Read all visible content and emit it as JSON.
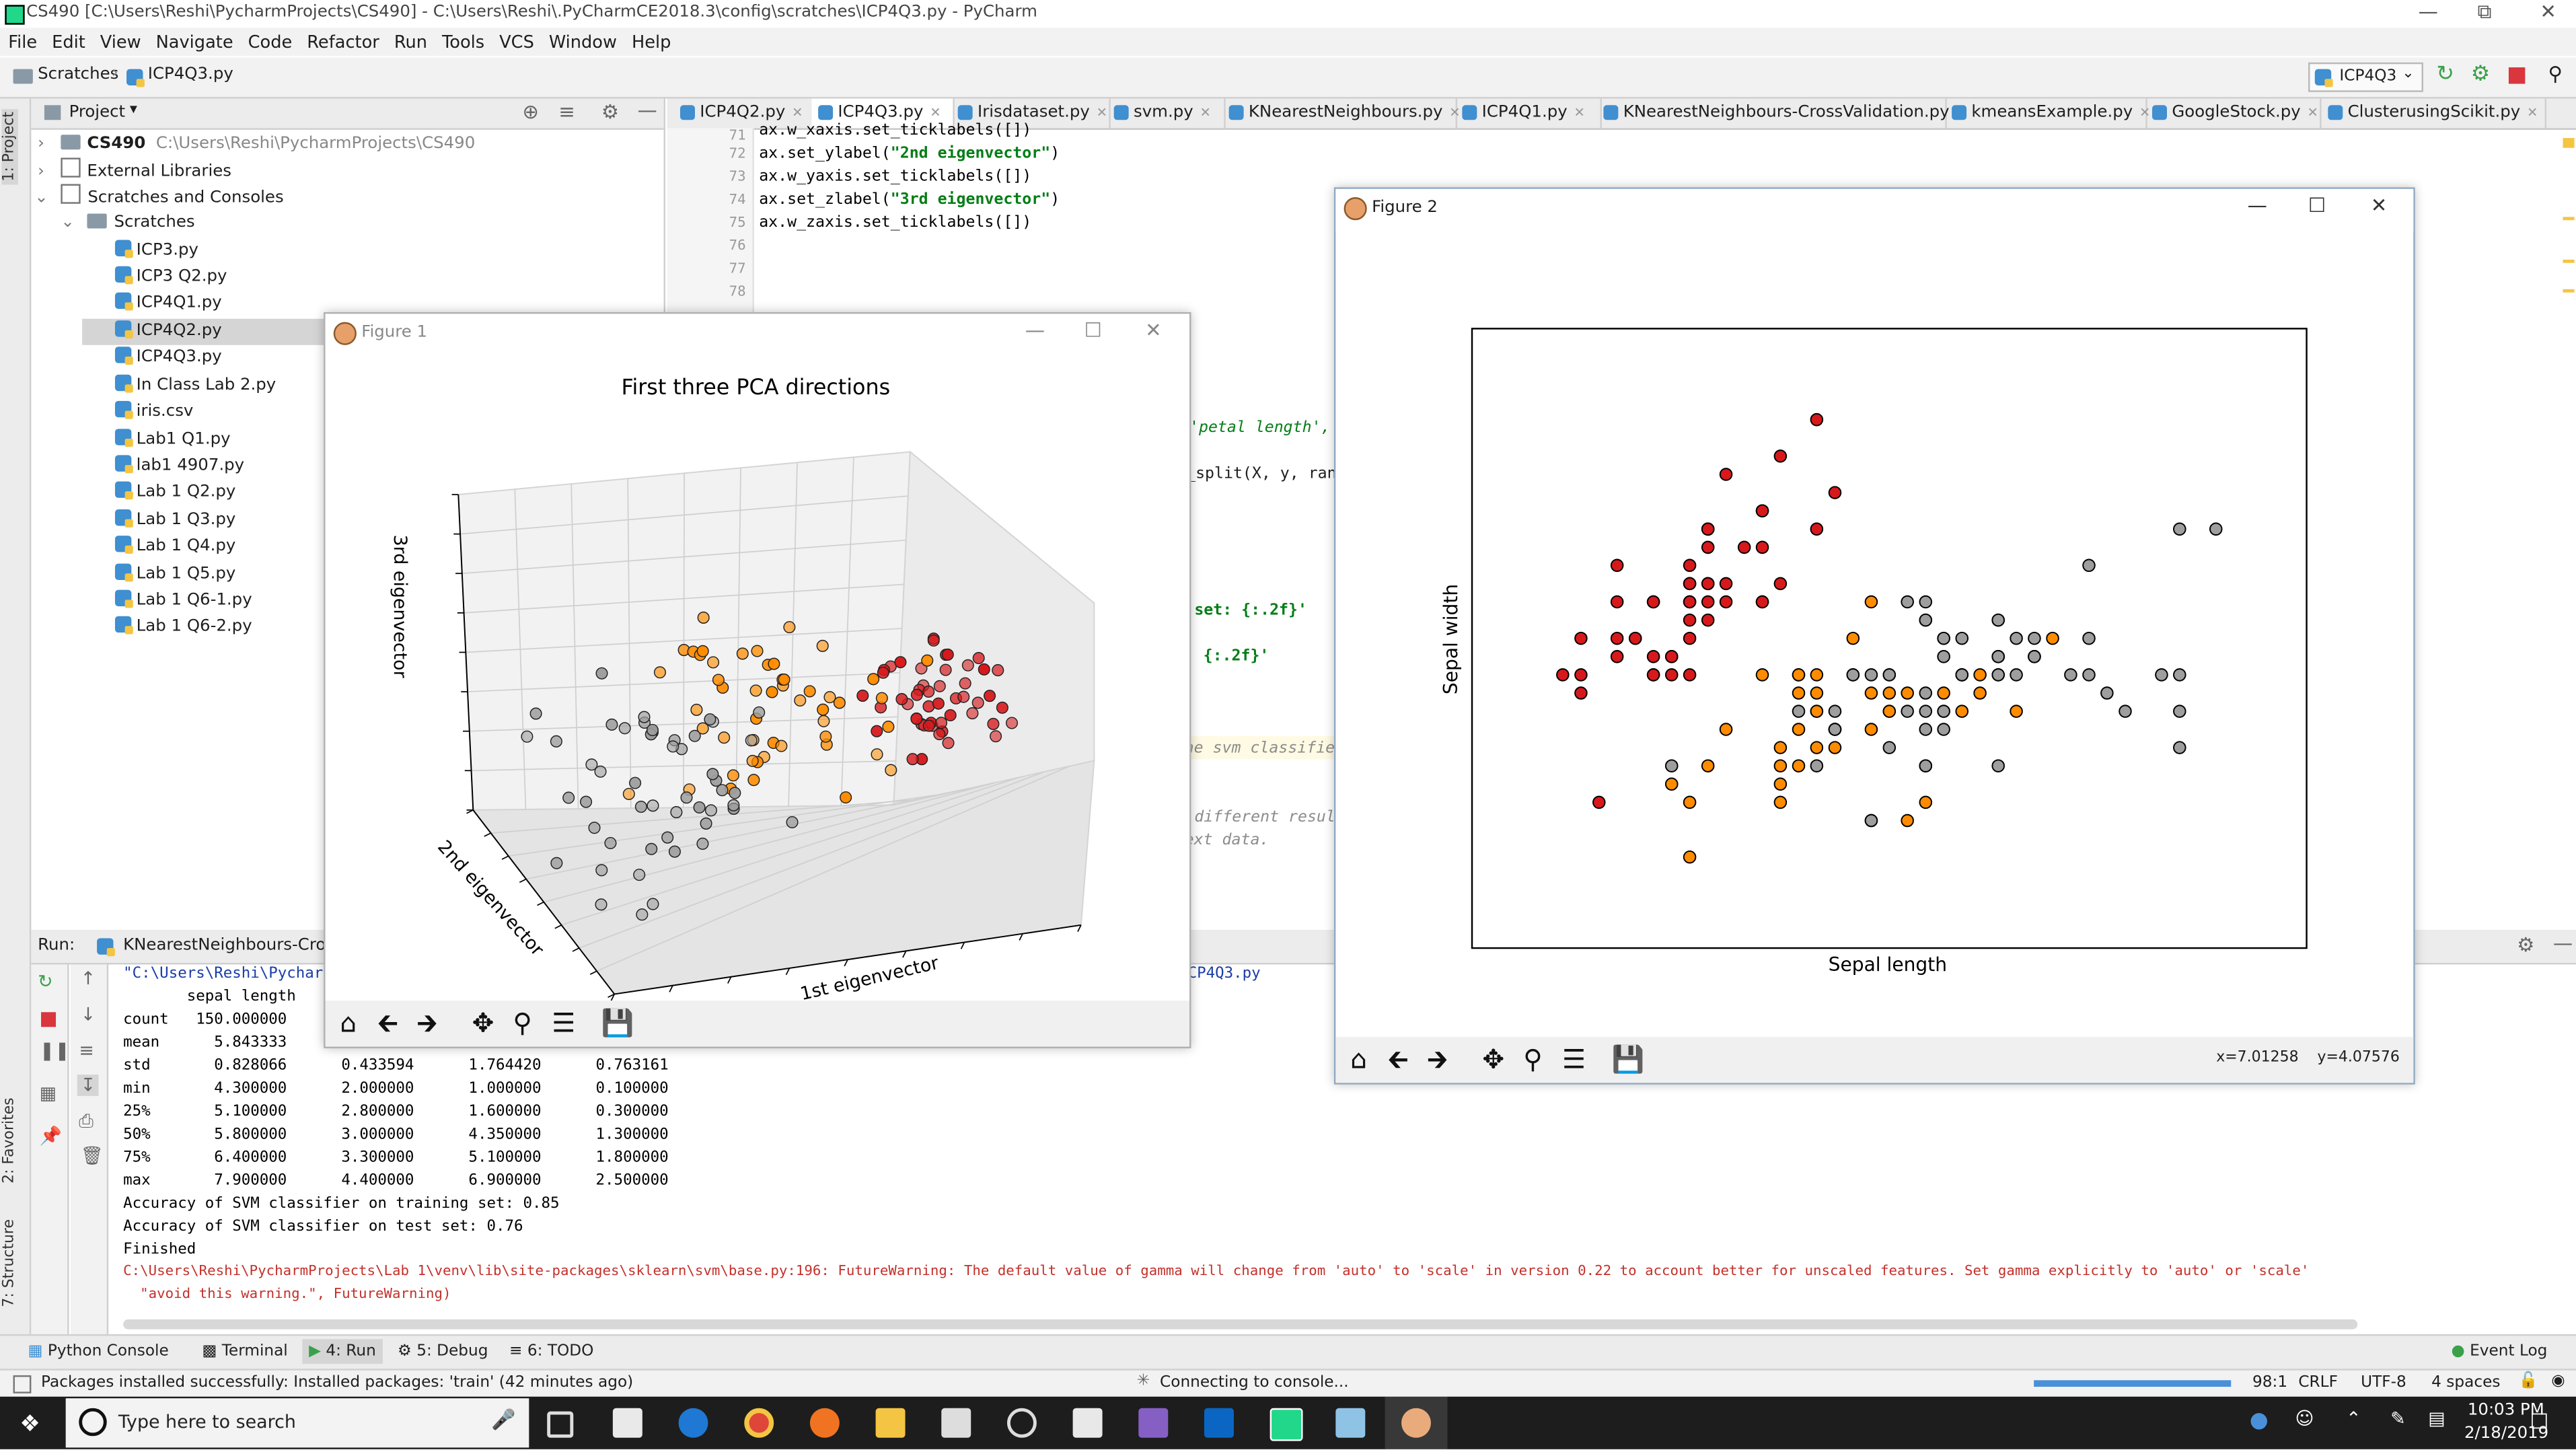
{
  "window": {
    "title": "CS490 [C:\\Users\\Reshi\\PycharmProjects\\CS490] - C:\\Users\\Reshi\\.PyCharmCE2018.3\\config\\scratches\\ICP4Q3.py - PyCharm"
  },
  "menu": [
    "File",
    "Edit",
    "View",
    "Navigate",
    "Code",
    "Refactor",
    "Run",
    "Tools",
    "VCS",
    "Window",
    "Help"
  ],
  "breadcrumb": [
    "Scratches",
    "ICP4Q3.py"
  ],
  "run_config": "ICP4Q3",
  "project": {
    "header": "Project",
    "root_name": "CS490",
    "root_path": "C:\\Users\\Reshi\\PycharmProjects\\CS490",
    "external": "External Libraries",
    "scratches_consoles": "Scratches and Consoles",
    "scratches": "Scratches",
    "files": [
      "ICP3.py",
      "ICP3 Q2.py",
      "ICP4Q1.py",
      "ICP4Q2.py",
      "ICP4Q3.py",
      "In Class Lab 2.py",
      "iris.csv",
      "Lab1 Q1.py",
      "lab1 4907.py",
      "Lab 1 Q2.py",
      "Lab 1 Q3.py",
      "Lab 1 Q4.py",
      "Lab 1 Q5.py",
      "Lab 1 Q6-1.py",
      "Lab 1 Q6-2.py"
    ]
  },
  "editor_tabs": [
    "ICP4Q2.py",
    "ICP4Q3.py",
    "Irisdataset.py",
    "svm.py",
    "KNearestNeighbours.py",
    "ICP4Q1.py",
    "KNearestNeighbours-CrossValidation.py",
    "kmeansExample.py",
    "GoogleStock.py",
    "ClusterusingScikit.py"
  ],
  "code": {
    "line_numbers": [
      "71",
      "72",
      "73",
      "74",
      "75",
      "76",
      "77",
      "78"
    ],
    "l71": "ax.w_xaxis.set_ticklabels([])",
    "l72a": "ax.set_ylabel(",
    "l72s": "\"2nd eigenvector\"",
    "l72b": ")",
    "l73": "ax.w_yaxis.set_ticklabels([])",
    "l74a": "ax.set_zlabel(",
    "l74s": "\"3rd eigenvector\"",
    "l74b": ")",
    "l75": "ax.w_zaxis.set_ticklabels([])",
    "frag1": "'petal length',",
    "frag2": "_split(X, y, ran",
    "frag3": "set: {:.2f}'",
    "frag4": ": {:.2f}'",
    "frag5": "he svm classifier",
    "frag6": "different resul",
    "frag7": "ext data.",
    "frag8": "CP4Q3.py"
  },
  "run": {
    "label": "Run:",
    "config": "KNearestNeighbours-CrossV",
    "out_path": "\"C:\\Users\\Reshi\\Pycharm",
    "header": "       sepal length  ",
    "stats": [
      "count   150.000000",
      "mean      5.843333",
      "std       0.828066      0.433594      1.764420      0.763161",
      "min       4.300000      2.000000      1.000000      0.100000",
      "25%       5.100000      2.800000      1.600000      0.300000",
      "50%       5.800000      3.000000      4.350000      1.300000",
      "75%       6.400000      3.300000      5.100000      1.800000",
      "max       7.900000      4.400000      6.900000      2.500000"
    ],
    "acc_train": "Accuracy of SVM classifier on training set: 0.85",
    "acc_test": "Accuracy of SVM classifier on test set: 0.76",
    "finished": "Finished",
    "warning": "C:\\Users\\Reshi\\PycharmProjects\\Lab 1\\venv\\lib\\site-packages\\sklearn\\svm\\base.py:196: FutureWarning: The default value of gamma will change from 'auto' to 'scale' in version 0.22 to account better for unscaled features. Set gamma explicitly to 'auto' or 'scale'",
    "warning2": "  \"avoid this warning.\", FutureWarning)"
  },
  "side_tabs": {
    "project": "1: Project",
    "favorites": "2: Favorites",
    "structure": "7: Structure"
  },
  "bottom_tools": [
    "Python Console",
    "Terminal",
    "4: Run",
    "5: Debug",
    "6: TODO"
  ],
  "event_log": "Event Log",
  "status": {
    "message": "Packages installed successfully: Installed packages: 'train' (42 minutes ago)",
    "connecting": "Connecting to console...",
    "position": "98:1",
    "line_sep": "CRLF",
    "encoding": "UTF-8",
    "indent": "4 spaces"
  },
  "taskbar": {
    "search": "Type here to search",
    "time": "10:03 PM",
    "date": "2/18/2019"
  },
  "figure1": {
    "title": "Figure 1"
  },
  "figure2": {
    "title": "Figure 2",
    "coords": "x=7.01258    y=4.07576"
  },
  "colors": {
    "setosa": "#d7191c",
    "versicolor": "#ff8c00",
    "virginica": "#9e9e9e"
  },
  "chart_data": [
    {
      "type": "scatter",
      "title": "First three PCA directions",
      "xlabel": "1st eigenvector",
      "ylabel": "2nd eigenvector",
      "zlabel": "3rd eigenvector",
      "note": "3D scatter, tick labels hidden",
      "series": [
        {
          "color": "#d7191c",
          "count": 50
        },
        {
          "color": "#ff8c00",
          "count": 50
        },
        {
          "color": "#9e9e9e",
          "count": 50
        }
      ]
    },
    {
      "type": "scatter",
      "xlabel": "Sepal length",
      "ylabel": "Sepal width",
      "xlim": [
        3.8,
        8.4
      ],
      "ylim": [
        1.5,
        4.9
      ],
      "grid": false,
      "series": [
        {
          "color": "#d7191c",
          "points": [
            [
              5.1,
              3.5
            ],
            [
              4.9,
              3.0
            ],
            [
              4.7,
              3.2
            ],
            [
              4.6,
              3.1
            ],
            [
              5.0,
              3.6
            ],
            [
              5.4,
              3.9
            ],
            [
              4.6,
              3.4
            ],
            [
              5.0,
              3.4
            ],
            [
              4.4,
              2.9
            ],
            [
              4.9,
              3.1
            ],
            [
              5.4,
              3.7
            ],
            [
              4.8,
              3.4
            ],
            [
              4.8,
              3.0
            ],
            [
              4.3,
              3.0
            ],
            [
              5.8,
              4.0
            ],
            [
              5.7,
              4.4
            ],
            [
              5.4,
              3.9
            ],
            [
              5.1,
              3.5
            ],
            [
              5.7,
              3.8
            ],
            [
              5.1,
              3.8
            ],
            [
              5.4,
              3.4
            ],
            [
              5.1,
              3.7
            ],
            [
              4.6,
              3.6
            ],
            [
              5.1,
              3.3
            ],
            [
              4.8,
              3.4
            ],
            [
              5.0,
              3.0
            ],
            [
              5.0,
              3.4
            ],
            [
              5.2,
              3.5
            ],
            [
              5.2,
              3.4
            ],
            [
              4.7,
              3.2
            ],
            [
              4.8,
              3.1
            ],
            [
              5.4,
              3.4
            ],
            [
              5.2,
              4.1
            ],
            [
              5.5,
              4.2
            ],
            [
              4.9,
              3.1
            ],
            [
              5.0,
              3.2
            ],
            [
              5.5,
              3.5
            ],
            [
              4.4,
              3.0
            ],
            [
              5.1,
              3.4
            ],
            [
              5.0,
              3.5
            ],
            [
              4.5,
              2.3
            ],
            [
              4.4,
              3.2
            ],
            [
              5.0,
              3.5
            ],
            [
              5.1,
              3.8
            ],
            [
              4.8,
              3.0
            ],
            [
              5.1,
              3.8
            ],
            [
              4.6,
              3.2
            ],
            [
              5.3,
              3.7
            ],
            [
              5.0,
              3.3
            ]
          ]
        },
        {
          "color": "#ff8c00",
          "points": [
            [
              7.0,
              3.2
            ],
            [
              6.4,
              3.2
            ],
            [
              6.9,
              3.1
            ],
            [
              5.5,
              2.3
            ],
            [
              6.5,
              2.8
            ],
            [
              5.7,
              2.8
            ],
            [
              6.3,
              3.3
            ],
            [
              4.9,
              2.4
            ],
            [
              6.6,
              2.9
            ],
            [
              5.2,
              2.7
            ],
            [
              5.0,
              2.0
            ],
            [
              5.9,
              3.0
            ],
            [
              6.0,
              2.2
            ],
            [
              6.1,
              2.9
            ],
            [
              5.6,
              2.9
            ],
            [
              6.7,
              3.1
            ],
            [
              5.6,
              3.0
            ],
            [
              5.8,
              2.7
            ],
            [
              6.2,
              2.2
            ],
            [
              5.6,
              2.5
            ],
            [
              5.9,
              3.2
            ],
            [
              6.1,
              2.8
            ],
            [
              6.3,
              2.5
            ],
            [
              6.1,
              2.8
            ],
            [
              6.4,
              2.9
            ],
            [
              6.6,
              3.0
            ],
            [
              6.8,
              2.8
            ],
            [
              6.7,
              3.0
            ],
            [
              6.0,
              2.9
            ],
            [
              5.7,
              2.6
            ],
            [
              5.5,
              2.4
            ],
            [
              5.8,
              2.7
            ],
            [
              6.0,
              2.7
            ],
            [
              5.4,
              3.0
            ],
            [
              6.0,
              3.4
            ],
            [
              6.7,
              3.1
            ],
            [
              6.3,
              2.3
            ],
            [
              5.6,
              3.0
            ],
            [
              5.5,
              2.5
            ],
            [
              5.5,
              2.6
            ],
            [
              6.1,
              3.0
            ],
            [
              5.8,
              2.6
            ],
            [
              5.0,
              2.3
            ],
            [
              5.6,
              2.7
            ],
            [
              5.7,
              3.0
            ],
            [
              5.7,
              2.9
            ],
            [
              6.2,
              2.9
            ],
            [
              5.1,
              2.5
            ],
            [
              5.7,
              2.8
            ]
          ]
        },
        {
          "color": "#9e9e9e",
          "points": [
            [
              6.3,
              3.3
            ],
            [
              5.8,
              2.7
            ],
            [
              7.1,
              3.0
            ],
            [
              6.3,
              2.9
            ],
            [
              6.5,
              3.0
            ],
            [
              7.6,
              3.0
            ],
            [
              4.9,
              2.5
            ],
            [
              7.3,
              2.9
            ],
            [
              6.7,
              2.5
            ],
            [
              7.2,
              3.6
            ],
            [
              6.5,
              3.2
            ],
            [
              6.4,
              2.7
            ],
            [
              6.8,
              3.0
            ],
            [
              5.7,
              2.5
            ],
            [
              5.8,
              2.8
            ],
            [
              6.4,
              3.2
            ],
            [
              6.5,
              3.0
            ],
            [
              7.7,
              3.8
            ],
            [
              7.7,
              2.6
            ],
            [
              6.0,
              2.2
            ],
            [
              6.9,
              3.2
            ],
            [
              5.6,
              2.8
            ],
            [
              7.7,
              2.8
            ],
            [
              6.3,
              2.7
            ],
            [
              6.7,
              3.3
            ],
            [
              7.2,
              3.2
            ],
            [
              6.2,
              2.8
            ],
            [
              6.1,
              3.0
            ],
            [
              6.4,
              2.8
            ],
            [
              7.2,
              3.0
            ],
            [
              7.4,
              2.8
            ],
            [
              7.9,
              3.8
            ],
            [
              6.4,
              2.8
            ],
            [
              6.3,
              2.8
            ],
            [
              6.1,
              2.6
            ],
            [
              7.7,
              3.0
            ],
            [
              6.3,
              3.4
            ],
            [
              6.4,
              3.1
            ],
            [
              6.0,
              3.0
            ],
            [
              6.9,
              3.1
            ],
            [
              6.7,
              3.1
            ],
            [
              6.9,
              3.1
            ],
            [
              5.8,
              2.7
            ],
            [
              6.8,
              3.2
            ],
            [
              6.7,
              3.3
            ],
            [
              6.7,
              3.0
            ],
            [
              6.3,
              2.5
            ],
            [
              6.5,
              3.0
            ],
            [
              6.2,
              3.4
            ],
            [
              5.9,
              3.0
            ]
          ]
        }
      ]
    }
  ]
}
